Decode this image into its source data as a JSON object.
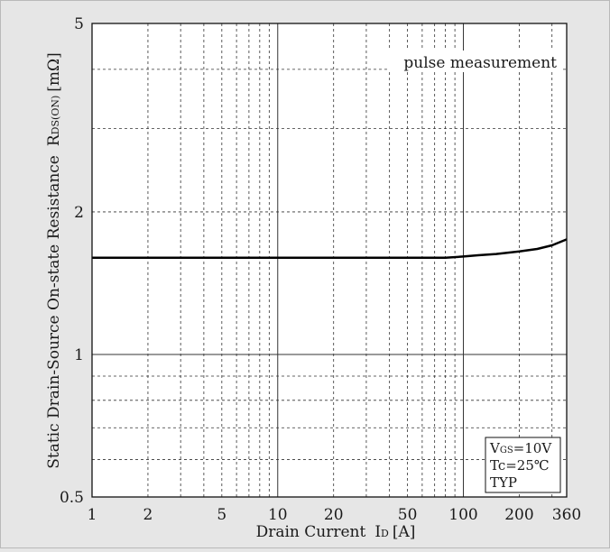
{
  "chart_data": {
    "type": "line",
    "xlabel": "Drain Current ID [A]",
    "xlabel_main": "Drain Current",
    "xlabel_sym": "I",
    "xlabel_sub": "D",
    "xlabel_unit": "[A]",
    "ylabel_main": "Static Drain-Source On-state Resistance",
    "ylabel_sym": "R",
    "ylabel_sub": "DS(ON)",
    "ylabel_unit": "[mΩ]",
    "xscale": "log",
    "yscale": "log",
    "xlim": [
      1,
      360
    ],
    "ylim": [
      0.5,
      5
    ],
    "x_ticks": [
      1,
      2,
      5,
      10,
      20,
      50,
      100,
      200,
      360
    ],
    "x_tick_labels": [
      "1",
      "2",
      "5",
      "10",
      "20",
      "50",
      "100",
      "200",
      "360"
    ],
    "y_ticks": [
      0.5,
      1,
      2,
      5
    ],
    "y_tick_labels": [
      "0.5",
      "1",
      "2",
      "5"
    ],
    "x_minor_grid": [
      3,
      4,
      6,
      7,
      8,
      9,
      30,
      40,
      60,
      70,
      80,
      90,
      300
    ],
    "y_minor_grid": [
      0.6,
      0.7,
      0.8,
      0.9,
      3,
      4
    ],
    "grid": true,
    "series": [
      {
        "x": [
          1,
          2,
          5,
          10,
          20,
          50,
          80,
          100,
          120,
          150,
          200,
          250,
          300,
          360
        ],
        "y": [
          1.6,
          1.6,
          1.6,
          1.6,
          1.6,
          1.6,
          1.6,
          1.61,
          1.62,
          1.63,
          1.65,
          1.67,
          1.7,
          1.75
        ]
      }
    ],
    "annotation_top": "pulse measurement",
    "legend_box": {
      "vgs_sym": "V",
      "vgs_sub": "GS",
      "vgs_value": "=10V",
      "tc": "Tc=25℃",
      "typ": "TYP"
    },
    "legend_placement": "bottom-right"
  }
}
